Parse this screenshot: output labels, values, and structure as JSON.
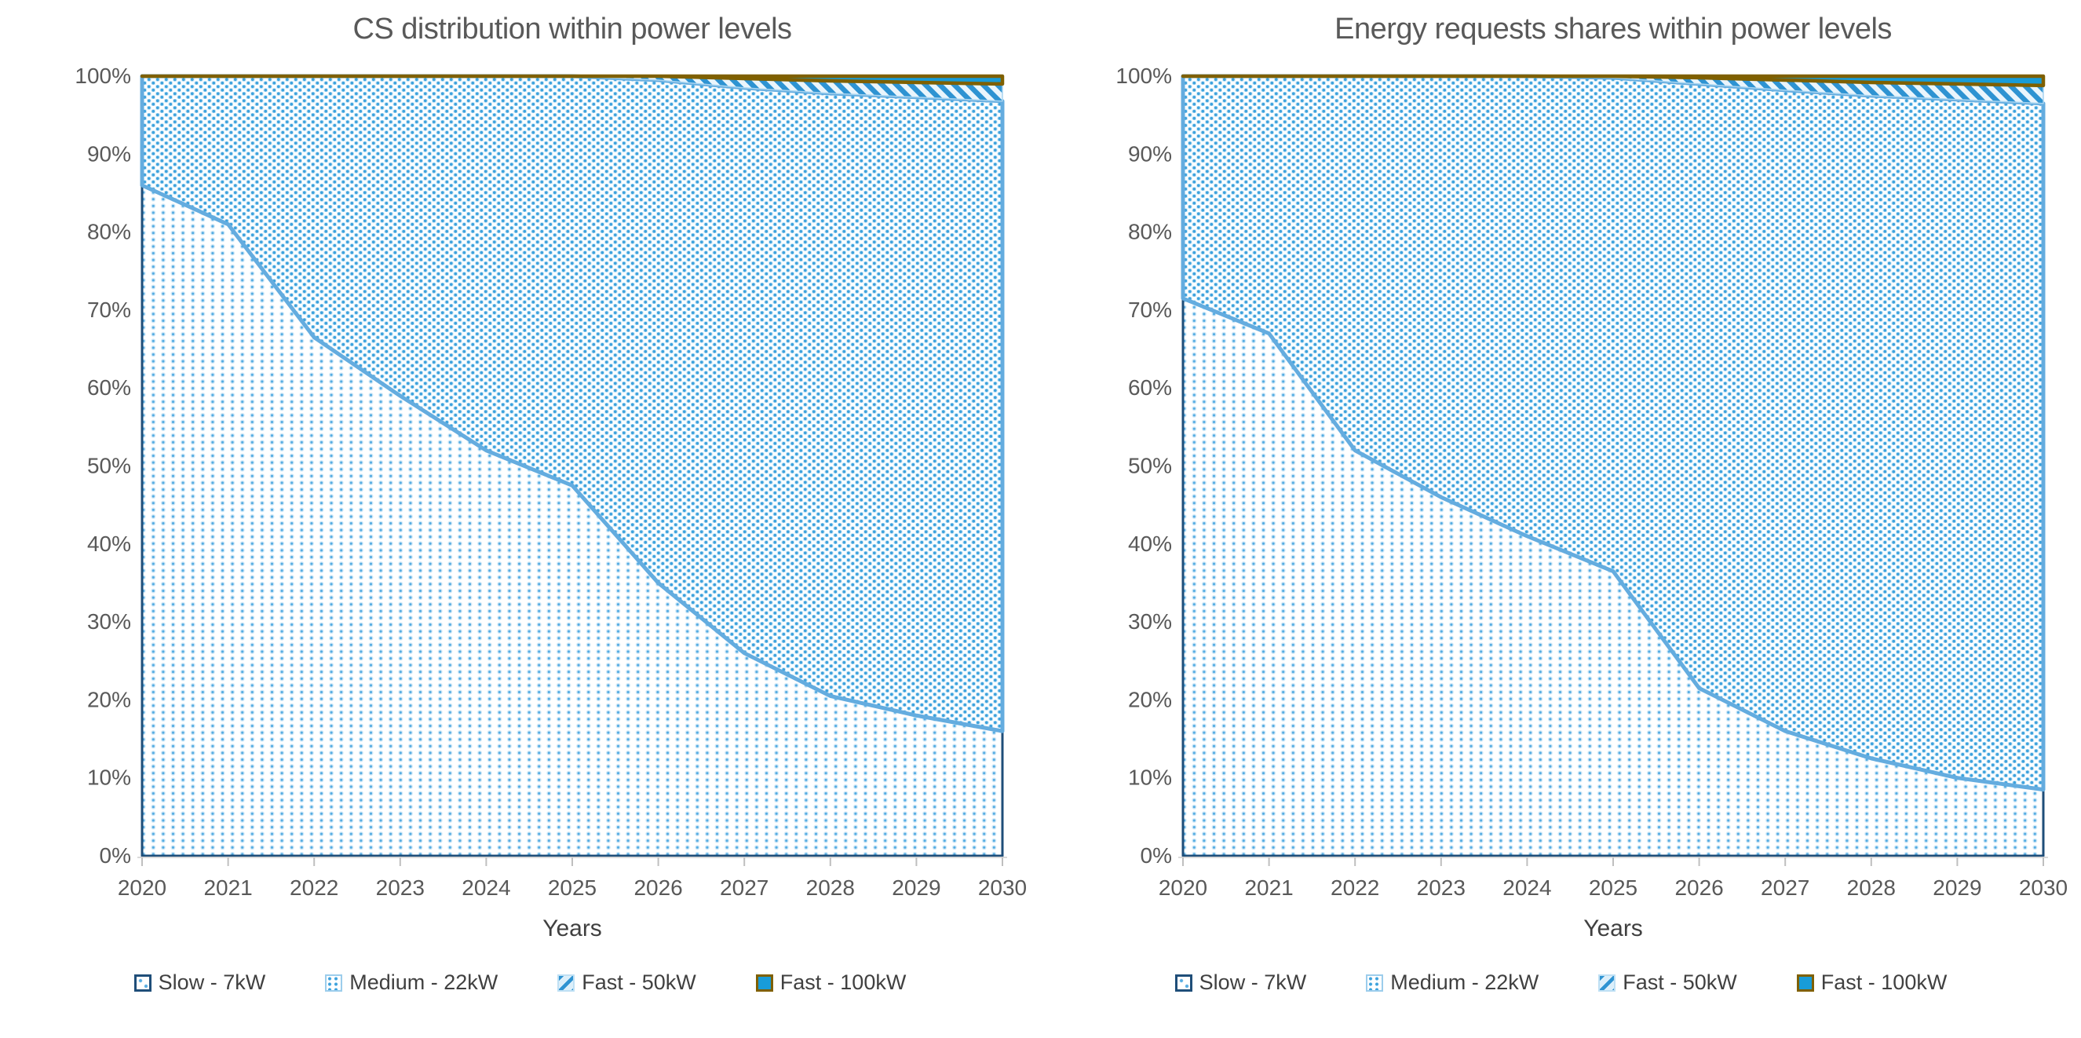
{
  "page": {
    "background": "#FFFFFF"
  },
  "colors": {
    "title_text": "#595959",
    "axis_text": "#595959",
    "axis_title_text": "#404040",
    "legend_text": "#404040",
    "axis_line": "#D9D9D9",
    "axis_tick": "#BFBFBF",
    "slow_border_navy": "#1F4E79",
    "boundary_line_blue": "#64ACDF",
    "slow_dot": "#55ACE2",
    "medium_dot": "#3DA2DD",
    "fast50_stripe": "#2E93D2",
    "fast50_bg": "#EAF5FC",
    "fast50_border": "#A7D4F0",
    "fast100_fill": "#189CD9",
    "fast100_border_olive": "#7F6000"
  },
  "charts": [
    {
      "title": "CS distribution within power levels",
      "xlabel": "Years",
      "legend": [
        {
          "label": "Slow - 7kW"
        },
        {
          "label": "Medium - 22kW"
        },
        {
          "label": "Fast - 50kW"
        },
        {
          "label": "Fast - 100kW"
        }
      ],
      "chart_data": {
        "type": "area",
        "stacked": true,
        "normalized": true,
        "unit": "%",
        "title": "CS distribution within power levels",
        "xlabel": "Years",
        "ylabel": "",
        "ylim": [
          0,
          100
        ],
        "grid": false,
        "legend_position": "bottom",
        "x": [
          "2020",
          "2021",
          "2022",
          "2023",
          "2024",
          "2025",
          "2026",
          "2027",
          "2028",
          "2029",
          "2030"
        ],
        "y_ticks": [
          "0%",
          "10%",
          "20%",
          "30%",
          "40%",
          "50%",
          "60%",
          "70%",
          "80%",
          "90%",
          "100%"
        ],
        "series": [
          {
            "name": "Slow - 7kW",
            "values": [
              86,
              81,
              66.5,
              59,
              52,
              47.5,
              35,
              26,
              20.5,
              18,
              16
            ]
          },
          {
            "name": "Medium - 22kW",
            "values": [
              14,
              19,
              33.5,
              41,
              48,
              52.5,
              64.5,
              72.5,
              77.3,
              79.3,
              80.8
            ]
          },
          {
            "name": "Fast - 50kW",
            "values": [
              0,
              0,
              0,
              0,
              0,
              0,
              0.5,
              1.2,
              1.6,
              1.9,
              2.2
            ]
          },
          {
            "name": "Fast - 100kW",
            "values": [
              0,
              0,
              0,
              0,
              0,
              0,
              0,
              0.3,
              0.6,
              0.8,
              1.0
            ]
          }
        ]
      }
    },
    {
      "title": "Energy requests shares within power levels",
      "xlabel": "Years",
      "legend": [
        {
          "label": "Slow - 7kW"
        },
        {
          "label": "Medium - 22kW"
        },
        {
          "label": "Fast - 50kW"
        },
        {
          "label": "Fast - 100kW"
        }
      ],
      "chart_data": {
        "type": "area",
        "stacked": true,
        "normalized": true,
        "unit": "%",
        "title": "Energy requests shares within power levels",
        "xlabel": "Years",
        "ylabel": "",
        "ylim": [
          0,
          100
        ],
        "grid": false,
        "legend_position": "bottom",
        "x": [
          "2020",
          "2021",
          "2022",
          "2023",
          "2024",
          "2025",
          "2026",
          "2027",
          "2028",
          "2029",
          "2030"
        ],
        "y_ticks": [
          "0%",
          "10%",
          "20%",
          "30%",
          "40%",
          "50%",
          "60%",
          "70%",
          "80%",
          "90%",
          "100%"
        ],
        "series": [
          {
            "name": "Slow - 7kW",
            "values": [
              71.5,
              67,
              52,
              46,
              41,
              36.5,
              21.5,
              16,
              12.5,
              10,
              8.5
            ]
          },
          {
            "name": "Medium - 22kW",
            "values": [
              28.5,
              33,
              48,
              54,
              59,
              63.3,
              77.5,
              82.2,
              85.0,
              87.0,
              88.0
            ]
          },
          {
            "name": "Fast - 50kW",
            "values": [
              0,
              0,
              0,
              0,
              0,
              0.2,
              0.8,
              1.3,
              1.7,
              2.0,
              2.3
            ]
          },
          {
            "name": "Fast - 100kW",
            "values": [
              0,
              0,
              0,
              0,
              0,
              0,
              0.2,
              0.5,
              0.8,
              1.0,
              1.2
            ]
          }
        ]
      }
    }
  ]
}
